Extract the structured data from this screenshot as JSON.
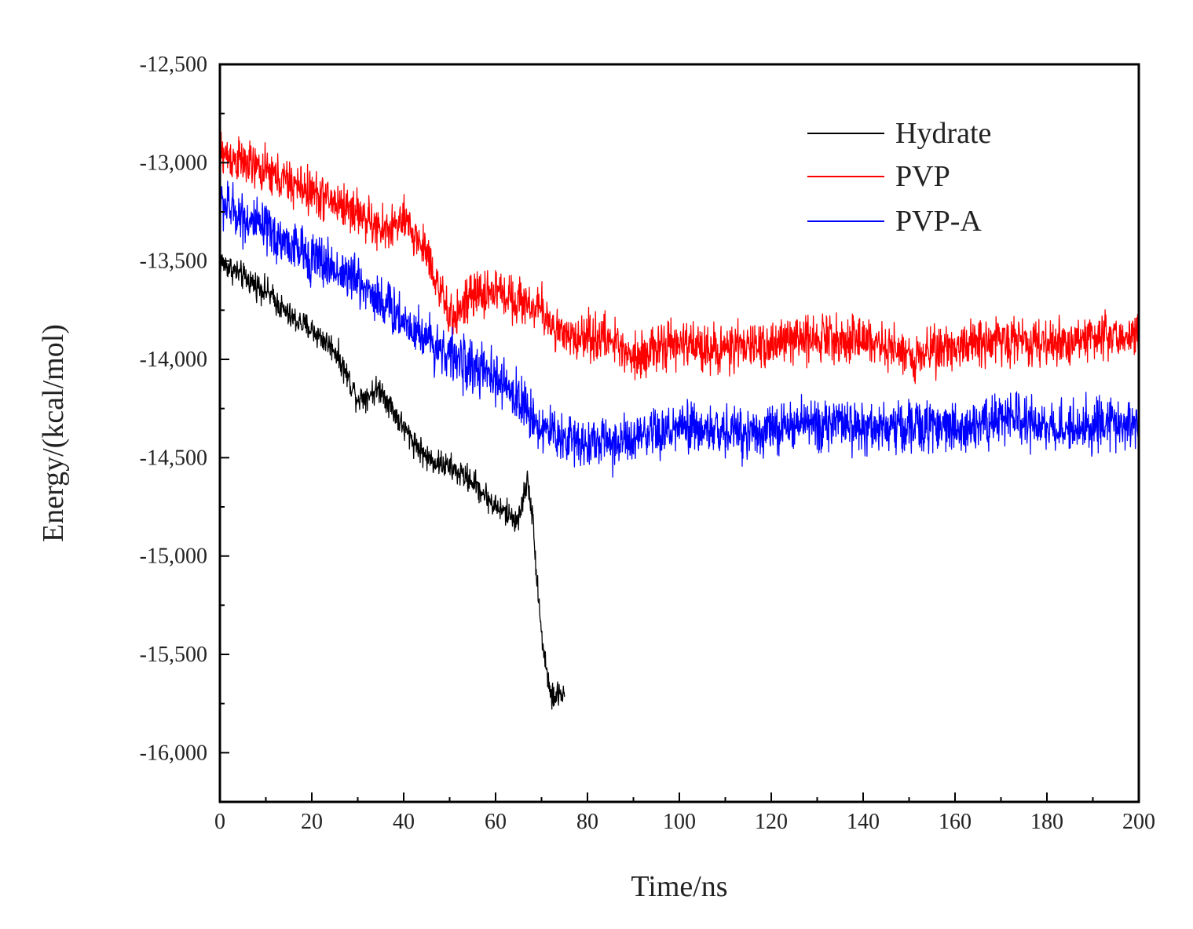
{
  "chart_data": {
    "type": "line",
    "title": "",
    "xlabel": "Time/ns",
    "ylabel": "Energy/(kcal/mol)",
    "xlim": [
      0,
      200
    ],
    "ylim": [
      -16250,
      -12500
    ],
    "x_ticks": [
      0,
      20,
      40,
      60,
      80,
      100,
      120,
      140,
      160,
      180,
      200
    ],
    "x_tick_labels": [
      "0",
      "20",
      "40",
      "60",
      "80",
      "100",
      "120",
      "140",
      "160",
      "180",
      "200"
    ],
    "y_ticks": [
      -12500,
      -13000,
      -13500,
      -14000,
      -14500,
      -15000,
      -15500,
      -16000
    ],
    "y_tick_labels": [
      "-12,500",
      "-13,000",
      "-13,500",
      "-14,000",
      "-14,500",
      "-15,000",
      "-15,500",
      "-16,000"
    ],
    "grid": false,
    "legend_position": "top-right",
    "series": [
      {
        "name": "Hydrate",
        "color": "#000000",
        "noise": 50,
        "x": [
          0,
          5,
          10,
          15,
          20,
          25,
          30,
          35,
          40,
          45,
          50,
          55,
          60,
          65,
          67,
          68,
          70,
          72,
          75
        ],
        "y": [
          -13500,
          -13580,
          -13650,
          -13780,
          -13850,
          -13950,
          -14200,
          -14150,
          -14350,
          -14500,
          -14550,
          -14620,
          -14750,
          -14820,
          -14600,
          -14800,
          -15400,
          -15720,
          -15700
        ]
      },
      {
        "name": "PVP",
        "color": "#ff0000",
        "noise": 85,
        "x": [
          0,
          10,
          20,
          30,
          35,
          40,
          45,
          50,
          55,
          60,
          65,
          70,
          75,
          80,
          85,
          90,
          100,
          110,
          120,
          130,
          140,
          150,
          160,
          170,
          180,
          190,
          200
        ],
        "y": [
          -12950,
          -13050,
          -13150,
          -13250,
          -13350,
          -13300,
          -13450,
          -13800,
          -13680,
          -13650,
          -13700,
          -13750,
          -13900,
          -13880,
          -13900,
          -13980,
          -13920,
          -13950,
          -13920,
          -13880,
          -13900,
          -13980,
          -13930,
          -13900,
          -13920,
          -13880,
          -13880
        ]
      },
      {
        "name": "PVP-A",
        "color": "#0000ff",
        "noise": 95,
        "x": [
          0,
          10,
          20,
          30,
          40,
          50,
          60,
          65,
          70,
          75,
          80,
          90,
          100,
          110,
          120,
          130,
          140,
          150,
          160,
          170,
          180,
          190,
          200
        ],
        "y": [
          -13200,
          -13350,
          -13480,
          -13600,
          -13800,
          -13980,
          -14100,
          -14200,
          -14350,
          -14400,
          -14420,
          -14420,
          -14350,
          -14370,
          -14360,
          -14320,
          -14350,
          -14340,
          -14350,
          -14300,
          -14340,
          -14340,
          -14320
        ]
      }
    ]
  }
}
